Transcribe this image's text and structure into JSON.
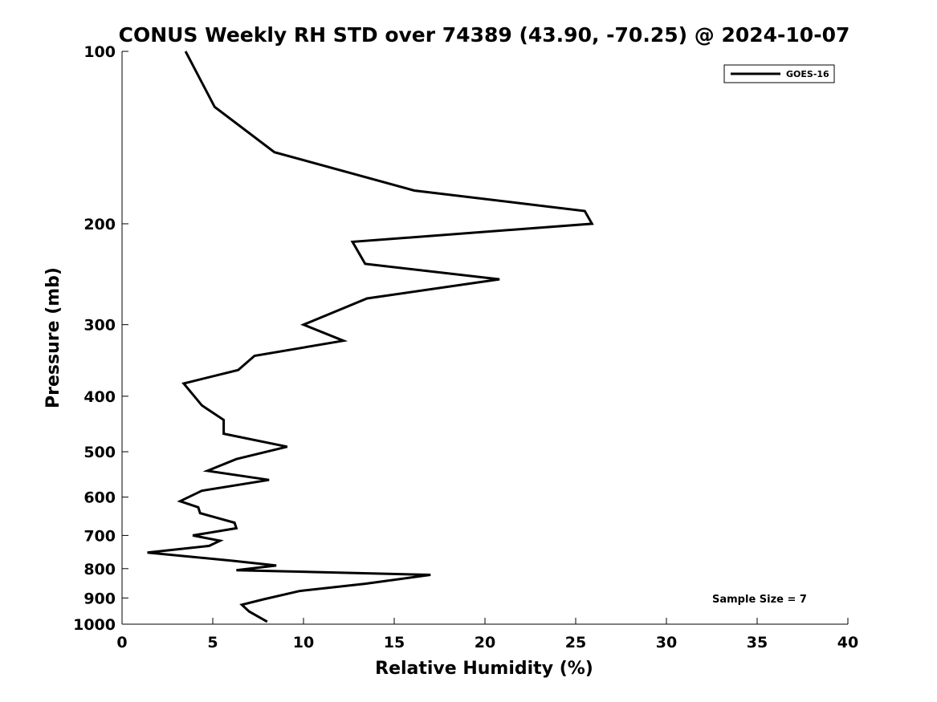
{
  "chart_data": {
    "type": "line",
    "title": "CONUS Weekly RH STD over 74389 (43.90, -70.25) @ 2024-10-07",
    "xlabel": "Relative Humidity (%)",
    "ylabel": "Pressure (mb)",
    "xlim": [
      0,
      40
    ],
    "ylim": [
      1000,
      100
    ],
    "yscale": "log",
    "y_reversed": true,
    "xticks": [
      0,
      5,
      10,
      15,
      20,
      25,
      30,
      35,
      40
    ],
    "yticks": [
      100,
      200,
      300,
      400,
      500,
      600,
      700,
      800,
      900,
      1000
    ],
    "grid": false,
    "legend_position": "top-right",
    "series": [
      {
        "name": "GOES-16",
        "color": "#000000",
        "x": [
          3.5,
          5.1,
          8.4,
          16.1,
          25.5,
          25.9,
          12.7,
          13.4,
          20.8,
          13.5,
          10.0,
          12.2,
          7.3,
          6.4,
          3.4,
          4.4,
          5.6,
          5.6,
          9.1,
          6.3,
          4.7,
          8.1,
          4.4,
          3.2,
          4.2,
          4.3,
          6.2,
          6.3,
          3.9,
          5.4,
          4.8,
          1.4,
          6.1,
          8.5,
          6.3,
          17.0,
          13.4,
          9.8,
          7.8,
          6.6,
          7.0,
          8.0
        ],
        "y": [
          100,
          125,
          150,
          175,
          190,
          200,
          215,
          235,
          250,
          270,
          300,
          320,
          340,
          360,
          380,
          415,
          440,
          465,
          490,
          515,
          540,
          560,
          585,
          610,
          625,
          640,
          665,
          680,
          700,
          715,
          730,
          750,
          775,
          790,
          805,
          820,
          850,
          875,
          905,
          925,
          950,
          990
        ]
      }
    ],
    "annotations": [
      "Sample Size = 7"
    ]
  }
}
